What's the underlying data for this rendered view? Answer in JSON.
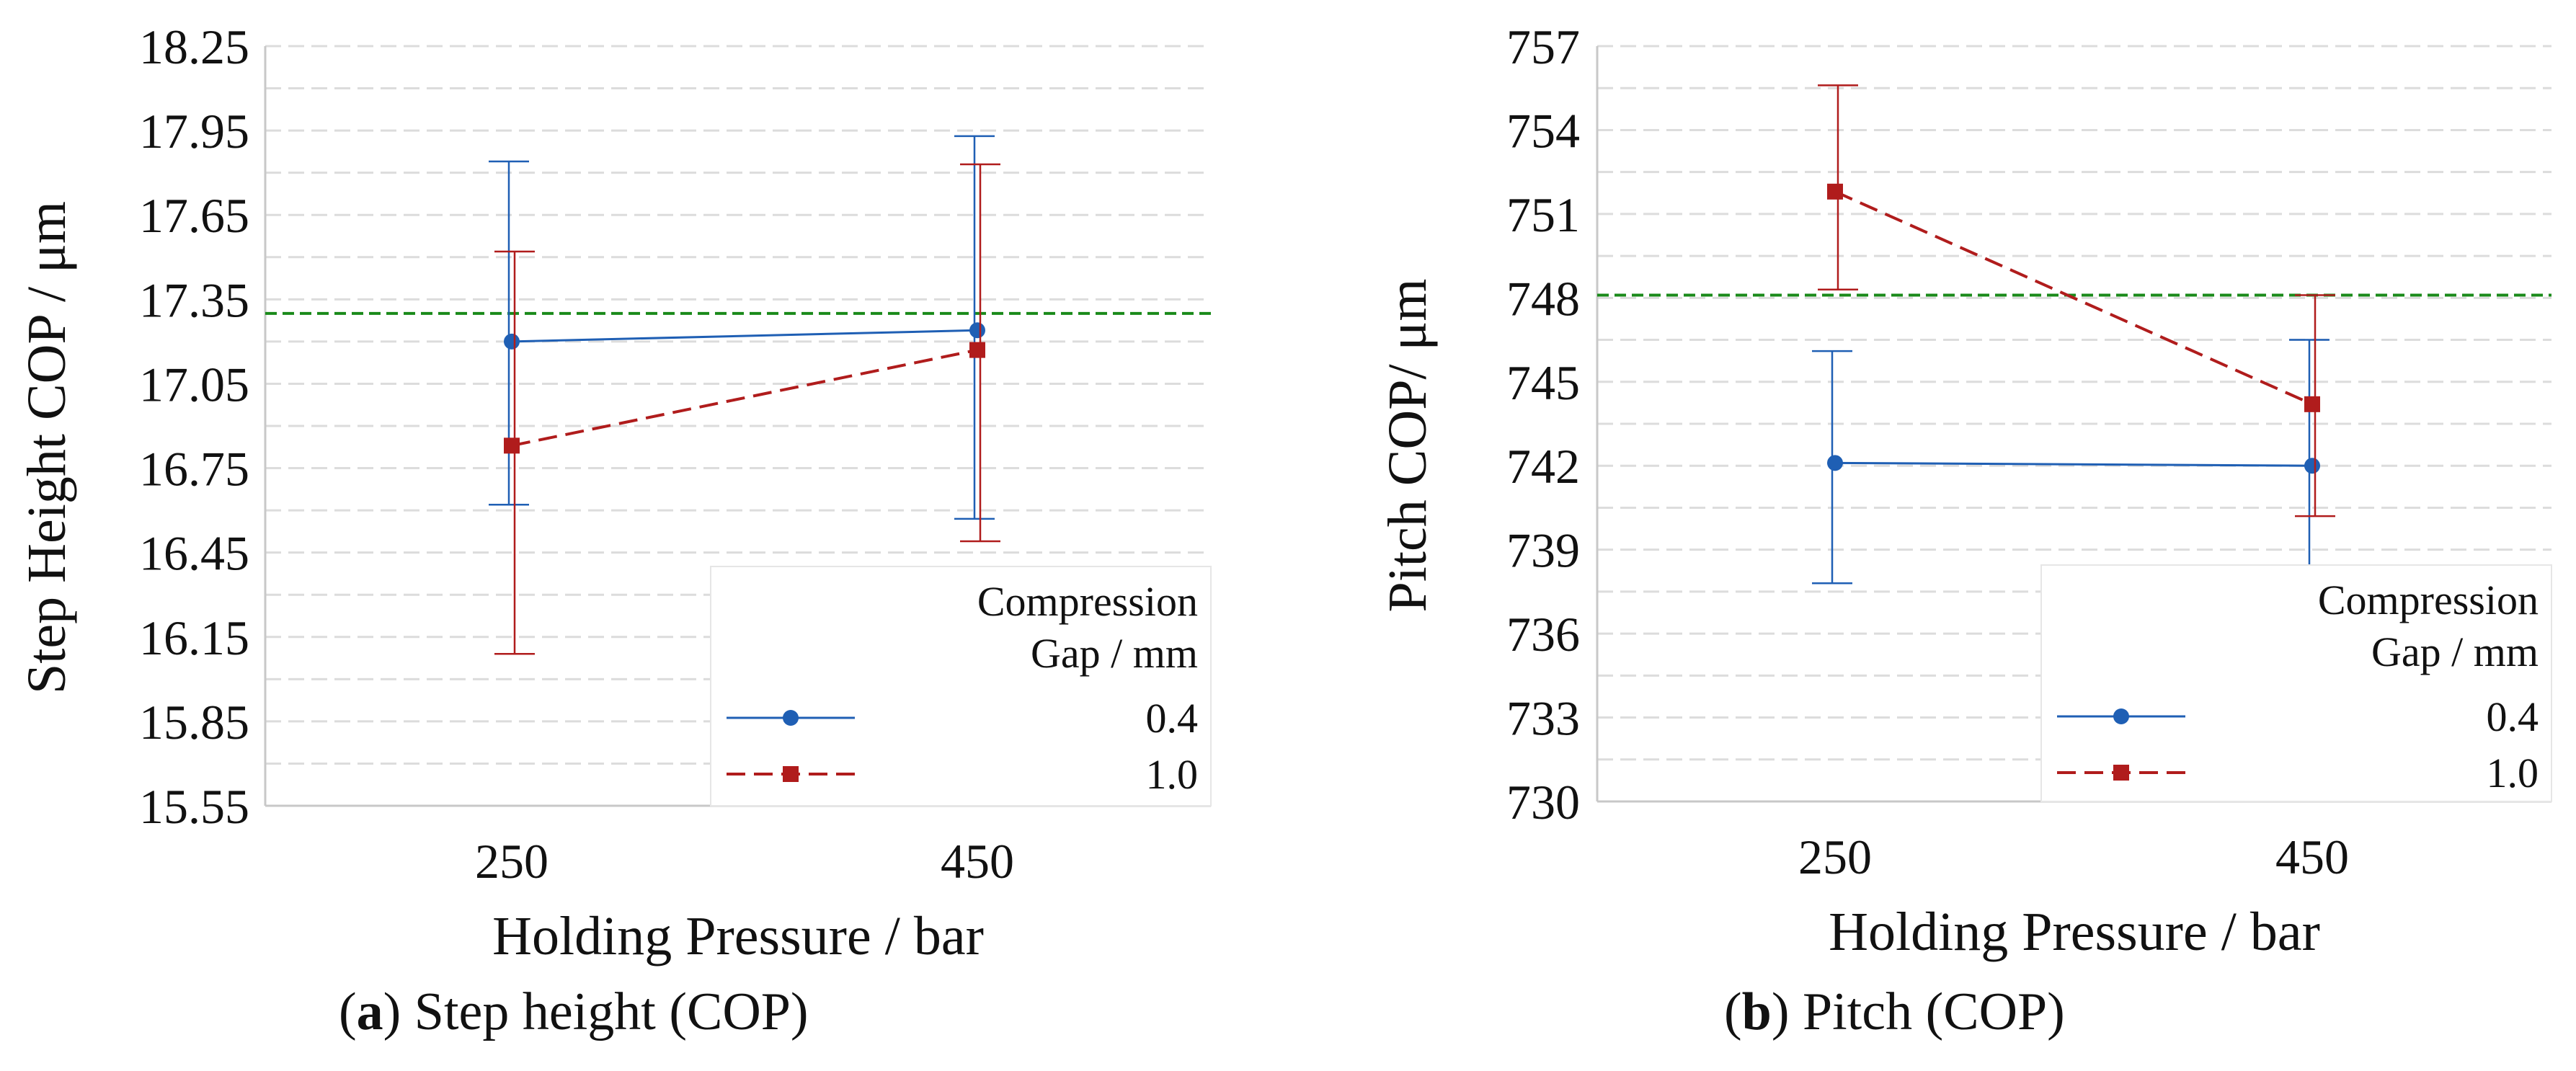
{
  "chart_data": [
    {
      "type": "line",
      "caption_letter": "a",
      "caption_text": "Step height (COP)",
      "xlabel": "Holding Pressure / bar",
      "ylabel": "Step Height COP / μm",
      "categories": [
        "250",
        "450"
      ],
      "ylim": [
        15.55,
        18.25
      ],
      "yticks": [
        "15.55",
        "15.85",
        "16.15",
        "16.45",
        "16.75",
        "17.05",
        "17.35",
        "17.65",
        "17.95",
        "18.25"
      ],
      "reference_line": 17.3,
      "grid": true,
      "legend_position": "bottom-right",
      "legend_title": [
        "Compression",
        "Gap / mm"
      ],
      "series": [
        {
          "name": "0.4",
          "color": "#1f5fb4",
          "marker": "circle",
          "line_style": "solid",
          "values": [
            17.2,
            17.24
          ],
          "error_low": [
            16.62,
            16.57
          ],
          "error_high": [
            17.84,
            17.93
          ]
        },
        {
          "name": "1.0",
          "color": "#b01c1c",
          "marker": "square",
          "line_style": "dashed",
          "values": [
            16.83,
            17.17
          ],
          "error_low": [
            16.09,
            16.49
          ],
          "error_high": [
            17.52,
            17.83
          ]
        }
      ]
    },
    {
      "type": "line",
      "caption_letter": "b",
      "caption_text": "Pitch (COP)",
      "xlabel": "Holding Pressure / bar",
      "ylabel": "Pitch COP/ μm",
      "categories": [
        "250",
        "450"
      ],
      "ylim": [
        730,
        757
      ],
      "yticks": [
        "730",
        "733",
        "736",
        "739",
        "742",
        "745",
        "748",
        "751",
        "754",
        "757"
      ],
      "reference_line": 748.1,
      "grid": true,
      "legend_position": "bottom-right",
      "legend_title": [
        "Compression",
        "Gap / mm"
      ],
      "series": [
        {
          "name": "0.4",
          "color": "#1f5fb4",
          "marker": "circle",
          "line_style": "solid",
          "values": [
            742.1,
            742.0
          ],
          "error_low": [
            737.8,
            737.5
          ],
          "error_high": [
            746.1,
            746.5
          ]
        },
        {
          "name": "1.0",
          "color": "#b01c1c",
          "marker": "square",
          "line_style": "dashed",
          "values": [
            751.8,
            744.2
          ],
          "error_low": [
            748.3,
            740.2
          ],
          "error_high": [
            755.6,
            748.1
          ]
        }
      ]
    }
  ]
}
